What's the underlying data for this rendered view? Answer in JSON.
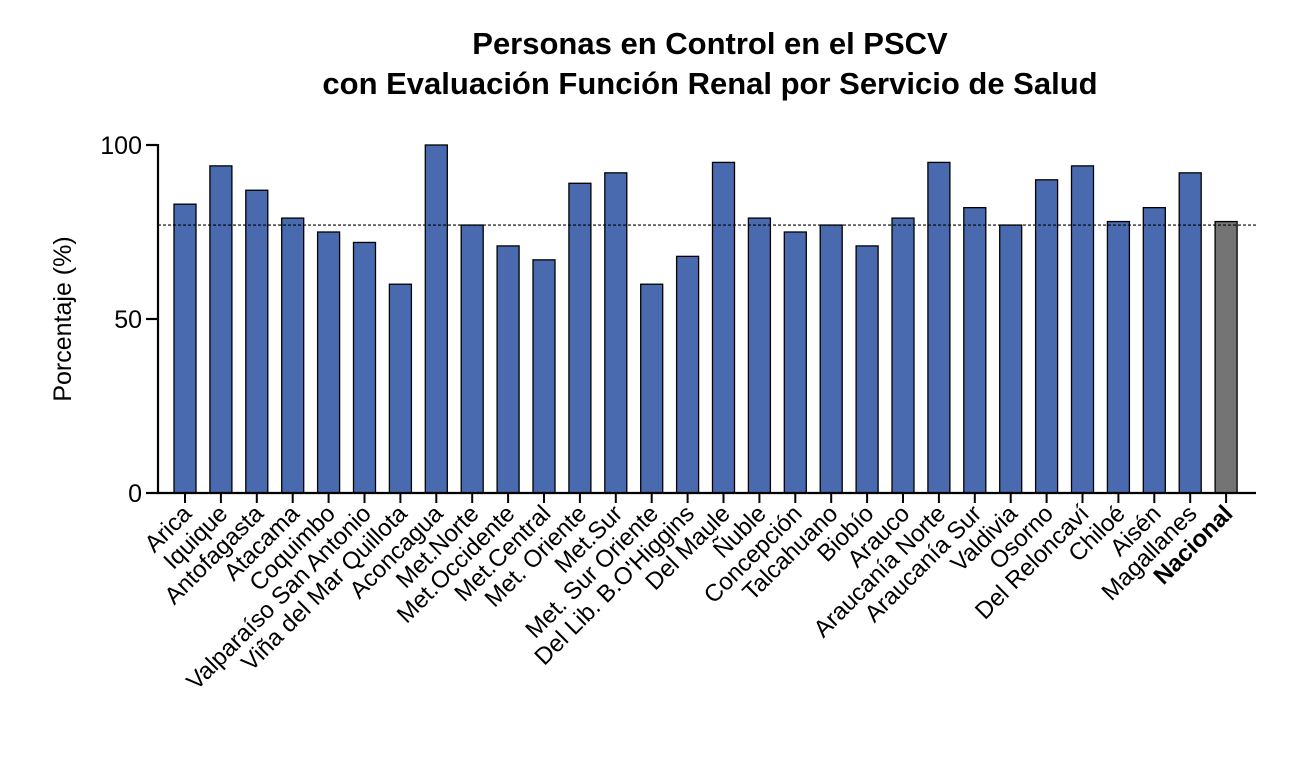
{
  "chart_data": {
    "type": "bar",
    "title": "Personas en Control en el PSCV",
    "subtitle": "con Evaluación Función Renal por Servicio de Salud",
    "ylabel": "Porcentaje (%)",
    "xlabel": "",
    "ylim": [
      0,
      100
    ],
    "yticks": [
      "0",
      "50",
      "100"
    ],
    "reference_line": {
      "value": 77,
      "style": "dotted"
    },
    "categories": [
      "Arica",
      "Iquique",
      "Antofagasta",
      "Atacama",
      "Coquimbo",
      "Valparaíso San Antonio",
      "Viña del Mar Quillota",
      "Aconcagua",
      "Met.Norte",
      "Met.Occidente",
      "Met.Central",
      "Met. Oriente",
      "Met.Sur",
      "Met. Sur Oriente",
      "Del Lib. B.O'Higgins",
      "Del Maule",
      "Ñuble",
      "Concepción",
      "Talcahuano",
      "Biobío",
      "Arauco",
      "Araucanía Norte",
      "Araucanía Sur",
      "Valdivia",
      "Osorno",
      "Del Reloncaví",
      "Chiloé",
      "Aisén",
      "Magallanes",
      "Nacional"
    ],
    "values": [
      83,
      94,
      87,
      79,
      75,
      72,
      60,
      100,
      77,
      71,
      67,
      89,
      92,
      60,
      68,
      95,
      79,
      75,
      77,
      71,
      79,
      95,
      82,
      77,
      90,
      94,
      78,
      82,
      92,
      78
    ],
    "highlight_category": "Nacional",
    "colors": {
      "bar": "#4a6aaf",
      "highlight_bar": "#747474",
      "bar_stroke": "#000000",
      "axis": "#000000"
    },
    "grid": false,
    "legend": "none"
  }
}
